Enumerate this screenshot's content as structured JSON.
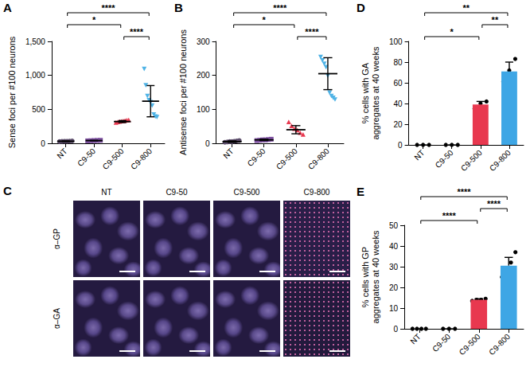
{
  "chart_data": [
    {
      "panel_label": "A",
      "type": "scatter",
      "y_label": "Sense foci per #100 neurons",
      "categories": [
        "NT",
        "C9-50",
        "C9-500",
        "C9-800"
      ],
      "colors": [
        "#5c4d6b",
        "#7c4f9f",
        "#e8384f",
        "#4fb3e6"
      ],
      "markers": [
        "circle",
        "rect",
        "triangle",
        "triangle-down"
      ],
      "points": [
        [
          25,
          28,
          30,
          30,
          32,
          35
        ],
        [
          36,
          38,
          40,
          42,
          44
        ],
        [
          300,
          310,
          315,
          320,
          325,
          330,
          335,
          340
        ],
        [
          1100,
          860,
          700,
          640,
          610,
          560,
          430,
          400,
          390
        ]
      ],
      "means": [
        30,
        40,
        320,
        620
      ],
      "errors": [
        4,
        3,
        15,
        230
      ],
      "ylim": [
        0,
        1500
      ],
      "yticks": [
        0,
        500,
        1000,
        1500
      ],
      "significance": [
        {
          "pair": [
            "NT",
            "C9-800"
          ],
          "label": "****"
        },
        {
          "pair": [
            "NT",
            "C9-500"
          ],
          "label": "*"
        },
        {
          "pair": [
            "C9-500",
            "C9-800"
          ],
          "label": "****"
        }
      ]
    },
    {
      "panel_label": "B",
      "type": "scatter",
      "y_label": "Antisense foci per #100 neurons",
      "categories": [
        "NT",
        "C9-50",
        "C9-500",
        "C9-800"
      ],
      "colors": [
        "#5c4d6b",
        "#7c4f9f",
        "#e8384f",
        "#4fb3e6"
      ],
      "markers": [
        "circle",
        "rect",
        "triangle",
        "triangle-down"
      ],
      "points": [
        [
          3,
          4,
          5,
          5,
          6,
          7,
          8
        ],
        [
          8,
          9,
          10,
          10,
          11,
          12
        ],
        [
          62,
          50,
          42,
          38,
          30,
          25
        ],
        [
          255,
          245,
          235,
          225,
          200,
          150,
          140,
          135,
          130
        ]
      ],
      "means": [
        5,
        10,
        40,
        205
      ],
      "errors": [
        2,
        2,
        12,
        47
      ],
      "ylim": [
        0,
        300
      ],
      "yticks": [
        0,
        100,
        200,
        300
      ],
      "significance": [
        {
          "pair": [
            "NT",
            "C9-800"
          ],
          "label": "****"
        },
        {
          "pair": [
            "NT",
            "C9-500"
          ],
          "label": "*"
        },
        {
          "pair": [
            "C9-500",
            "C9-800"
          ],
          "label": "****"
        }
      ]
    },
    {
      "panel_label": "D",
      "type": "bar",
      "y_label": "% cells with GA\naggregates at 40 weeks",
      "categories": [
        "NT",
        "C9-50",
        "C9-500",
        "C9-800"
      ],
      "colors": [
        "#5c4d6b",
        "#7c4f9f",
        "#e8384f",
        "#3ea6e5"
      ],
      "marker": "circle",
      "values": [
        0,
        0,
        39,
        71
      ],
      "errors": [
        0,
        0,
        3,
        9
      ],
      "points": [
        [
          0,
          0,
          0
        ],
        [
          0,
          0,
          0
        ],
        [
          35,
          40,
          42
        ],
        [
          61,
          72,
          83
        ]
      ],
      "ylim": [
        0,
        100
      ],
      "yticks": [
        0,
        20,
        40,
        60,
        80,
        100
      ],
      "significance": [
        {
          "pair": [
            "NT",
            "C9-800"
          ],
          "label": "**"
        },
        {
          "pair": [
            "C9-500",
            "C9-800"
          ],
          "label": "**"
        },
        {
          "pair": [
            "NT",
            "C9-500"
          ],
          "label": "*"
        }
      ]
    },
    {
      "panel_label": "E",
      "type": "bar",
      "y_label": "% cells with GP\naggregates at 40 weeks",
      "categories": [
        "NT",
        "C9-50",
        "C9-500",
        "C9-800"
      ],
      "colors": [
        "#5c4d6b",
        "#7c4f9f",
        "#e8384f",
        "#3ea6e5"
      ],
      "marker": "circle",
      "values": [
        0,
        0,
        14,
        30.5
      ],
      "errors": [
        0,
        0,
        0.5,
        4
      ],
      "points": [
        [
          0,
          0,
          0,
          0
        ],
        [
          0,
          0,
          0
        ],
        [
          13.5,
          14,
          14,
          14.5
        ],
        [
          25,
          28,
          32,
          37
        ]
      ],
      "ylim": [
        0,
        50
      ],
      "yticks": [
        0,
        10,
        20,
        30,
        40,
        50
      ],
      "significance": [
        {
          "pair": [
            "NT",
            "C9-800"
          ],
          "label": "****"
        },
        {
          "pair": [
            "C9-500",
            "C9-800"
          ],
          "label": "****"
        },
        {
          "pair": [
            "NT",
            "C9-500"
          ],
          "label": "****"
        }
      ]
    }
  ],
  "image_panel": {
    "panel_label": "C",
    "columns": [
      "NT",
      "C9-50",
      "C9-500",
      "C9-800"
    ],
    "rows": [
      "α–GP",
      "α–GA"
    ]
  }
}
